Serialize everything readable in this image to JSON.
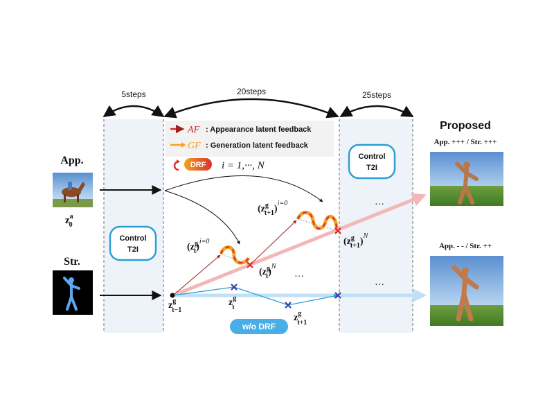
{
  "steps": {
    "first": "5steps",
    "second": "20steps",
    "third": "25steps"
  },
  "legend": {
    "af_symbol": "AF",
    "af_text": ": Appearance latent feedback",
    "gf_symbol": "GF",
    "gf_text": ": Generation latent feedback",
    "drf_badge": "DRF",
    "iteration": "i = 1,···, N"
  },
  "blocks": {
    "control_left_1": "Control",
    "control_left_2": "T2I",
    "control_right_1": "Control",
    "control_right_2": "T2I"
  },
  "inputs": {
    "app_label": "App.",
    "app_latent_base": "z",
    "app_latent_sup": "a",
    "app_latent_sub": "0",
    "str_label": "Str."
  },
  "latents": {
    "z_t_minus_1_base": "z",
    "z_t_minus_1_sup": "g",
    "z_t_minus_1_sub": "t−1",
    "z_t_i0_base": "(z",
    "z_t_i0_sup": "g",
    "z_t_i0_sub": "t",
    "z_t_i0_close": ")",
    "z_t_i0_exp": "i=0",
    "z_t_N_base": "(z",
    "z_t_N_sup": "g",
    "z_t_N_sub": "t",
    "z_t_N_close": ")",
    "z_t_N_exp": "N",
    "z_t1_i0_base": "(z",
    "z_t1_i0_sup": "g",
    "z_t1_i0_sub": "t+1",
    "z_t1_i0_close": ")",
    "z_t1_i0_exp": "i=0",
    "z_t1_N_base": "(z",
    "z_t1_N_sup": "g",
    "z_t1_N_sub": "t+1",
    "z_t1_N_close": ")",
    "z_t1_N_exp": "N",
    "z_t_base": "z",
    "z_t_sup": "g",
    "z_t_sub": "t",
    "z_t1_base": "z",
    "z_t1_sup": "g",
    "z_t1_sub": "t+1",
    "dots_mid": "···",
    "dots_top": "···",
    "dots_bottom": "···"
  },
  "wo_drf": "w/o DRF",
  "outputs": {
    "title": "Proposed",
    "top_caption": "App. +++ / Str. +++",
    "bottom_caption": "App. - - / Str. ++"
  },
  "colors": {
    "af": "#d62728",
    "gf": "#f4a21f",
    "panel": "#eef3f9",
    "pink_arrow": "#f2b7b7",
    "blue_arrow": "#bfe0f5",
    "blue_path": "#2a9fd6",
    "badge": "#4aaee6",
    "control_border": "#2a9fd6"
  }
}
